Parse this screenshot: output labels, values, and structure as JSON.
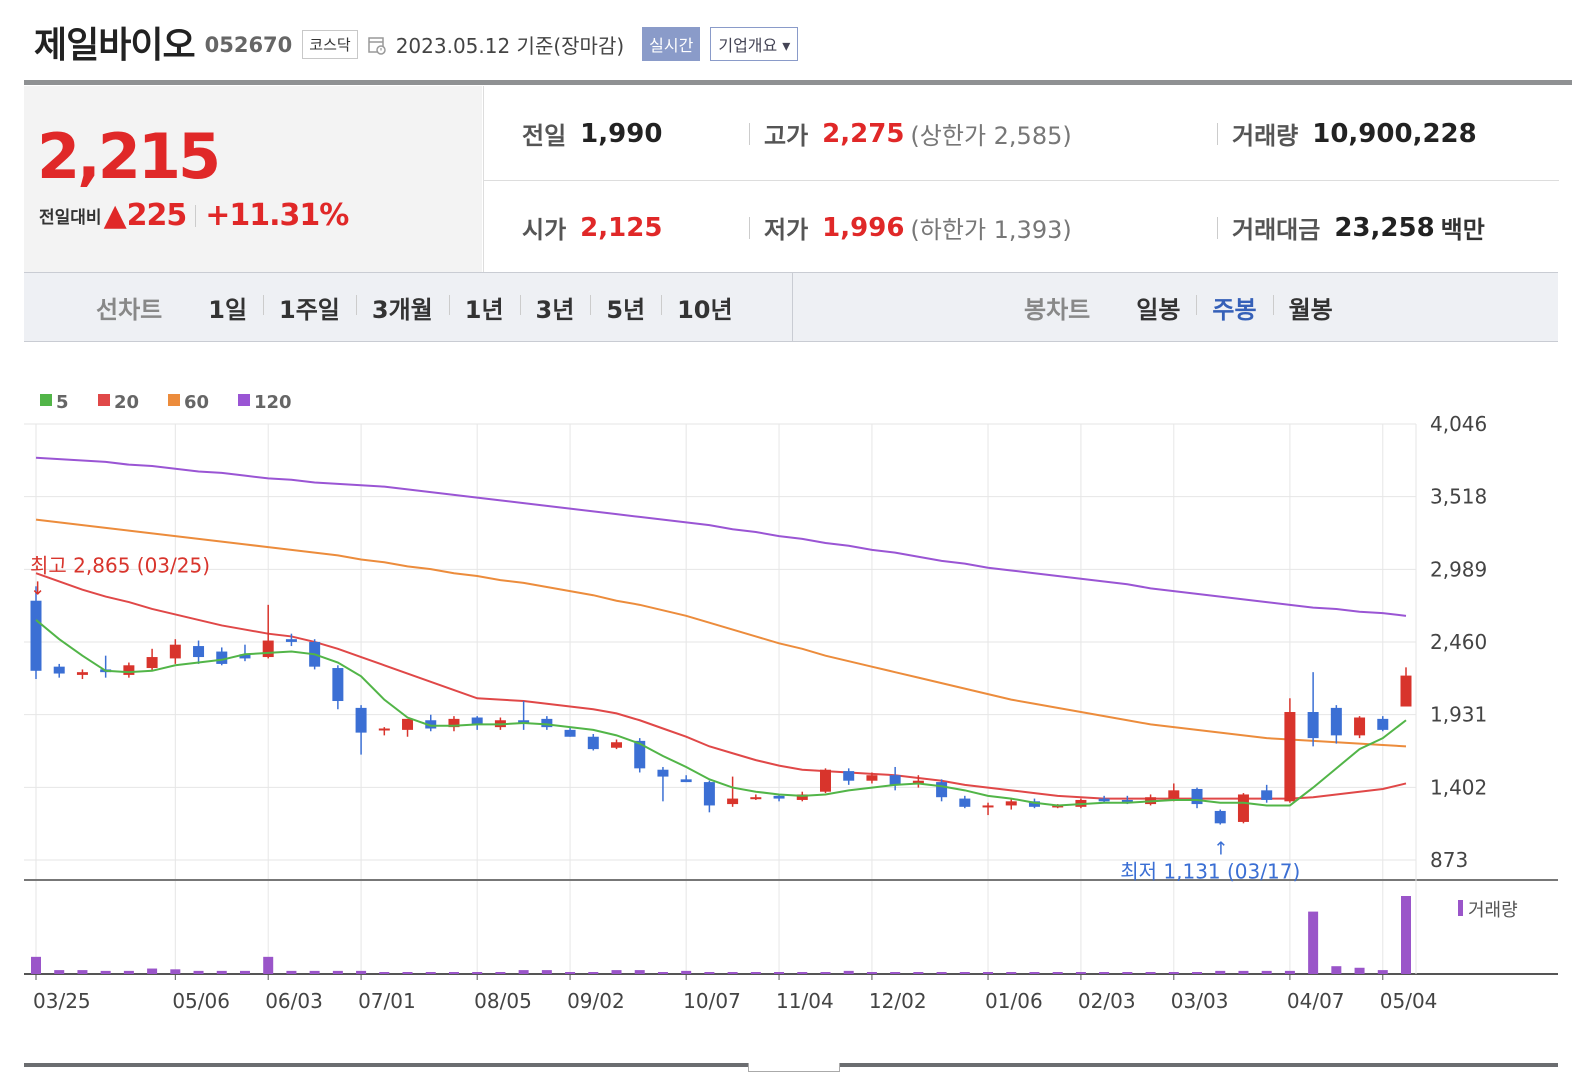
{
  "header": {
    "company": "제일바이오",
    "code": "052670",
    "market": "코스닥",
    "date_text": "2023.05.12  기준(장마감)",
    "realtime_button": "실시간",
    "company_overview_button": "기업개요 ▾"
  },
  "price": {
    "current": "2,215",
    "change_label": "전일대비",
    "arrow": "▲",
    "change": "225",
    "change_pct": "+11.31%"
  },
  "stats": {
    "prev_close": {
      "label": "전일",
      "value": "1,990"
    },
    "high": {
      "label": "고가",
      "value": "2,275",
      "limit": "(상한가 2,585)"
    },
    "volume": {
      "label": "거래량",
      "value": "10,900,228"
    },
    "open": {
      "label": "시가",
      "value": "2,125"
    },
    "low": {
      "label": "저가",
      "value": "1,996",
      "limit": "(하한가 1,393)"
    },
    "trade_value": {
      "label": "거래대금",
      "value": "23,258",
      "unit": "백만"
    }
  },
  "periods": {
    "line_label": "선차트",
    "line_items": [
      "1일",
      "1주일",
      "3개월",
      "1년",
      "3년",
      "5년",
      "10년"
    ],
    "candle_label": "봉차트",
    "candle_items": [
      "일봉",
      "주봉",
      "월봉"
    ],
    "selected_candle": "주봉"
  },
  "chart_data": {
    "type": "candlestick",
    "interval": "weekly",
    "legend": [
      {
        "label": "5",
        "color": "#52b548"
      },
      {
        "label": "20",
        "color": "#e04848"
      },
      {
        "label": "60",
        "color": "#ec8c3c"
      },
      {
        "label": "120",
        "color": "#9a55d4"
      }
    ],
    "y_ticks": [
      "4,046",
      "3,518",
      "2,989",
      "2,460",
      "1,931",
      "1,402",
      "873"
    ],
    "y_range": [
      873,
      4046
    ],
    "x_ticks": [
      {
        "label": "03/25",
        "index": 0
      },
      {
        "label": "05/06",
        "index": 6
      },
      {
        "label": "06/03",
        "index": 10
      },
      {
        "label": "07/01",
        "index": 14
      },
      {
        "label": "08/05",
        "index": 19
      },
      {
        "label": "09/02",
        "index": 23
      },
      {
        "label": "10/07",
        "index": 28
      },
      {
        "label": "11/04",
        "index": 32
      },
      {
        "label": "12/02",
        "index": 36
      },
      {
        "label": "01/06",
        "index": 41
      },
      {
        "label": "02/03",
        "index": 45
      },
      {
        "label": "03/03",
        "index": 49
      },
      {
        "label": "04/07",
        "index": 54
      },
      {
        "label": "05/04",
        "index": 58
      }
    ],
    "candles": [
      [
        2760,
        2865,
        2190,
        2250
      ],
      [
        2280,
        2300,
        2200,
        2230
      ],
      [
        2220,
        2260,
        2190,
        2240
      ],
      [
        2260,
        2360,
        2200,
        2240
      ],
      [
        2220,
        2310,
        2200,
        2290
      ],
      [
        2270,
        2410,
        2250,
        2350
      ],
      [
        2340,
        2480,
        2300,
        2440
      ],
      [
        2430,
        2470,
        2300,
        2350
      ],
      [
        2390,
        2420,
        2290,
        2300
      ],
      [
        2370,
        2440,
        2320,
        2340
      ],
      [
        2350,
        2730,
        2340,
        2470
      ],
      [
        2480,
        2520,
        2430,
        2460
      ],
      [
        2460,
        2480,
        2260,
        2280
      ],
      [
        2270,
        2290,
        1970,
        2030
      ],
      [
        1980,
        2000,
        1640,
        1800
      ],
      [
        1820,
        1840,
        1780,
        1830
      ],
      [
        1820,
        1870,
        1770,
        1900
      ],
      [
        1890,
        1930,
        1810,
        1830
      ],
      [
        1840,
        1920,
        1810,
        1900
      ],
      [
        1910,
        1920,
        1820,
        1860
      ],
      [
        1840,
        1910,
        1820,
        1890
      ],
      [
        1890,
        2030,
        1820,
        1870
      ],
      [
        1900,
        1920,
        1820,
        1840
      ],
      [
        1820,
        1840,
        1770,
        1770
      ],
      [
        1770,
        1790,
        1670,
        1680
      ],
      [
        1690,
        1750,
        1680,
        1730
      ],
      [
        1740,
        1760,
        1510,
        1540
      ],
      [
        1530,
        1550,
        1300,
        1480
      ],
      [
        1460,
        1490,
        1440,
        1440
      ],
      [
        1440,
        1450,
        1220,
        1270
      ],
      [
        1280,
        1480,
        1260,
        1320
      ],
      [
        1320,
        1350,
        1310,
        1330
      ],
      [
        1340,
        1350,
        1300,
        1320
      ],
      [
        1310,
        1370,
        1300,
        1350
      ],
      [
        1370,
        1540,
        1360,
        1530
      ],
      [
        1520,
        1540,
        1420,
        1450
      ],
      [
        1450,
        1510,
        1430,
        1490
      ],
      [
        1490,
        1550,
        1380,
        1420
      ],
      [
        1430,
        1490,
        1400,
        1450
      ],
      [
        1440,
        1460,
        1300,
        1330
      ],
      [
        1320,
        1340,
        1250,
        1260
      ],
      [
        1260,
        1290,
        1200,
        1270
      ],
      [
        1270,
        1320,
        1240,
        1300
      ],
      [
        1300,
        1320,
        1250,
        1260
      ],
      [
        1270,
        1280,
        1250,
        1270
      ],
      [
        1260,
        1320,
        1250,
        1310
      ],
      [
        1320,
        1340,
        1290,
        1300
      ],
      [
        1310,
        1340,
        1280,
        1300
      ],
      [
        1280,
        1350,
        1270,
        1330
      ],
      [
        1320,
        1430,
        1300,
        1380
      ],
      [
        1390,
        1400,
        1250,
        1280
      ],
      [
        1230,
        1240,
        1131,
        1140
      ],
      [
        1150,
        1360,
        1140,
        1350
      ],
      [
        1380,
        1420,
        1290,
        1310
      ],
      [
        1300,
        2050,
        1290,
        1950
      ],
      [
        1950,
        2240,
        1700,
        1760
      ],
      [
        1980,
        2000,
        1720,
        1780
      ],
      [
        1780,
        1920,
        1760,
        1910
      ],
      [
        1900,
        1920,
        1810,
        1820
      ],
      [
        1990,
        2275,
        1996,
        2215
      ]
    ],
    "ma5": [
      2620,
      2480,
      2360,
      2250,
      2240,
      2250,
      2290,
      2310,
      2330,
      2370,
      2380,
      2390,
      2370,
      2310,
      2210,
      2040,
      1910,
      1850,
      1850,
      1860,
      1860,
      1870,
      1860,
      1840,
      1820,
      1780,
      1720,
      1630,
      1550,
      1460,
      1400,
      1370,
      1350,
      1340,
      1350,
      1380,
      1400,
      1420,
      1430,
      1410,
      1380,
      1340,
      1320,
      1290,
      1270,
      1280,
      1290,
      1290,
      1300,
      1310,
      1310,
      1290,
      1290,
      1270,
      1270,
      1400,
      1540,
      1680,
      1760,
      1890
    ],
    "ma20": [
      2960,
      2900,
      2840,
      2790,
      2750,
      2700,
      2660,
      2620,
      2580,
      2550,
      2520,
      2500,
      2460,
      2410,
      2350,
      2290,
      2230,
      2170,
      2110,
      2050,
      2040,
      2030,
      2010,
      1990,
      1970,
      1940,
      1890,
      1830,
      1770,
      1700,
      1650,
      1600,
      1560,
      1530,
      1520,
      1510,
      1500,
      1490,
      1470,
      1450,
      1420,
      1400,
      1380,
      1360,
      1340,
      1330,
      1320,
      1320,
      1320,
      1320,
      1320,
      1320,
      1320,
      1320,
      1320,
      1330,
      1350,
      1370,
      1390,
      1430
    ],
    "ma60": [
      3350,
      3330,
      3310,
      3290,
      3270,
      3250,
      3230,
      3210,
      3190,
      3170,
      3150,
      3130,
      3110,
      3090,
      3060,
      3040,
      3010,
      2990,
      2960,
      2940,
      2910,
      2890,
      2860,
      2830,
      2800,
      2760,
      2730,
      2690,
      2650,
      2600,
      2550,
      2500,
      2450,
      2410,
      2360,
      2320,
      2280,
      2240,
      2200,
      2160,
      2120,
      2080,
      2040,
      2010,
      1980,
      1950,
      1920,
      1890,
      1860,
      1840,
      1820,
      1800,
      1780,
      1760,
      1750,
      1740,
      1730,
      1720,
      1710,
      1700
    ],
    "ma120": [
      3800,
      3790,
      3780,
      3770,
      3750,
      3740,
      3720,
      3700,
      3690,
      3670,
      3650,
      3640,
      3620,
      3610,
      3600,
      3590,
      3570,
      3550,
      3530,
      3510,
      3490,
      3470,
      3450,
      3430,
      3410,
      3390,
      3370,
      3350,
      3330,
      3310,
      3280,
      3260,
      3230,
      3210,
      3180,
      3160,
      3130,
      3110,
      3080,
      3050,
      3030,
      3000,
      2980,
      2960,
      2940,
      2920,
      2900,
      2880,
      2850,
      2830,
      2810,
      2790,
      2770,
      2750,
      2730,
      2710,
      2700,
      2680,
      2670,
      2650
    ],
    "volume": [
      0.22,
      0.05,
      0.05,
      0.04,
      0.04,
      0.07,
      0.06,
      0.04,
      0.04,
      0.04,
      0.22,
      0.04,
      0.04,
      0.04,
      0.04,
      0.0,
      0.0,
      0.0,
      0.0,
      0.0,
      0.0,
      0.05,
      0.05,
      0.0,
      0.0,
      0.05,
      0.05,
      0.0,
      0.04,
      0.0,
      0.0,
      0.0,
      0.0,
      0.0,
      0.0,
      0.04,
      0.0,
      0.0,
      0.0,
      0.0,
      0.0,
      0.0,
      0.0,
      0.0,
      0.0,
      0.0,
      0.0,
      0.0,
      0.0,
      0.0,
      0.0,
      0.04,
      0.04,
      0.04,
      0.04,
      0.8,
      0.1,
      0.08,
      0.05,
      1.0
    ],
    "annotations": {
      "high": {
        "text": "최고 2,865 (03/25)",
        "index": 0
      },
      "low": {
        "text": "최저 1,131 (03/17)",
        "index": 51
      }
    },
    "volume_legend": "거래량",
    "colors": {
      "up": "#d8342c",
      "down": "#3b6fd4",
      "volume": "#9a55c9",
      "grid": "#e6e6e6",
      "axis": "#555"
    }
  }
}
